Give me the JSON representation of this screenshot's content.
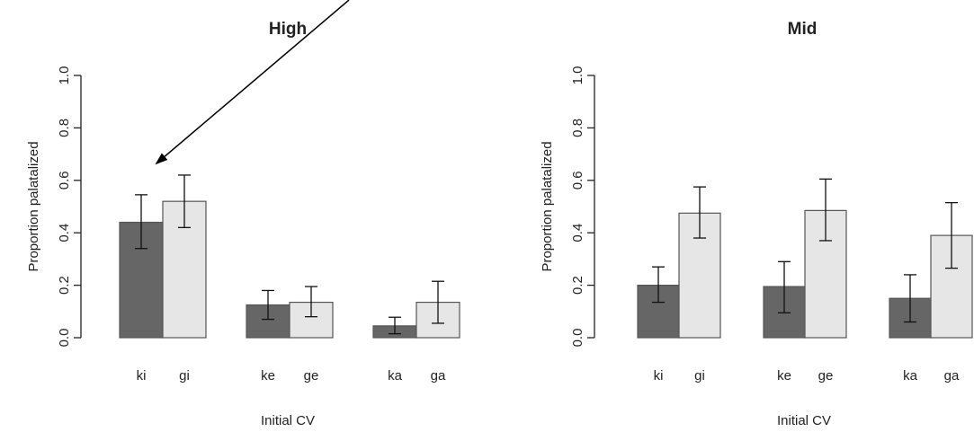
{
  "chart_data": [
    {
      "type": "bar",
      "title": "High",
      "xlabel": "Initial CV",
      "ylabel": "Proportion palatalized",
      "ylim": [
        0,
        1
      ],
      "yticks": [
        "0.0",
        "0.2",
        "0.4",
        "0.6",
        "0.8",
        "1.0"
      ],
      "groups": [
        {
          "bars": [
            {
              "label": "ki",
              "value": 0.44,
              "lower": 0.34,
              "upper": 0.545,
              "color": "#666666"
            },
            {
              "label": "gi",
              "value": 0.52,
              "lower": 0.42,
              "upper": 0.62,
              "color": "#e6e6e6"
            }
          ]
        },
        {
          "bars": [
            {
              "label": "ke",
              "value": 0.125,
              "lower": 0.07,
              "upper": 0.18,
              "color": "#666666"
            },
            {
              "label": "ge",
              "value": 0.135,
              "lower": 0.08,
              "upper": 0.195,
              "color": "#e6e6e6"
            }
          ]
        },
        {
          "bars": [
            {
              "label": "ka",
              "value": 0.045,
              "lower": 0.015,
              "upper": 0.078,
              "color": "#666666"
            },
            {
              "label": "ga",
              "value": 0.135,
              "lower": 0.055,
              "upper": 0.215,
              "color": "#e6e6e6"
            }
          ]
        }
      ],
      "annotation": "arrow pointing to ki bar"
    },
    {
      "type": "bar",
      "title": "Mid",
      "xlabel": "Initial CV",
      "ylabel": "Proportion palatalized",
      "ylim": [
        0,
        1
      ],
      "yticks": [
        "0.0",
        "0.2",
        "0.4",
        "0.6",
        "0.8",
        "1.0"
      ],
      "groups": [
        {
          "bars": [
            {
              "label": "ki",
              "value": 0.2,
              "lower": 0.135,
              "upper": 0.27,
              "color": "#666666"
            },
            {
              "label": "gi",
              "value": 0.475,
              "lower": 0.38,
              "upper": 0.575,
              "color": "#e6e6e6"
            }
          ]
        },
        {
          "bars": [
            {
              "label": "ke",
              "value": 0.195,
              "lower": 0.095,
              "upper": 0.29,
              "color": "#666666"
            },
            {
              "label": "ge",
              "value": 0.485,
              "lower": 0.37,
              "upper": 0.605,
              "color": "#e6e6e6"
            }
          ]
        },
        {
          "bars": [
            {
              "label": "ka",
              "value": 0.15,
              "lower": 0.06,
              "upper": 0.24,
              "color": "#666666"
            },
            {
              "label": "ga",
              "value": 0.39,
              "lower": 0.265,
              "upper": 0.515,
              "color": "#e6e6e6"
            }
          ]
        }
      ]
    }
  ]
}
